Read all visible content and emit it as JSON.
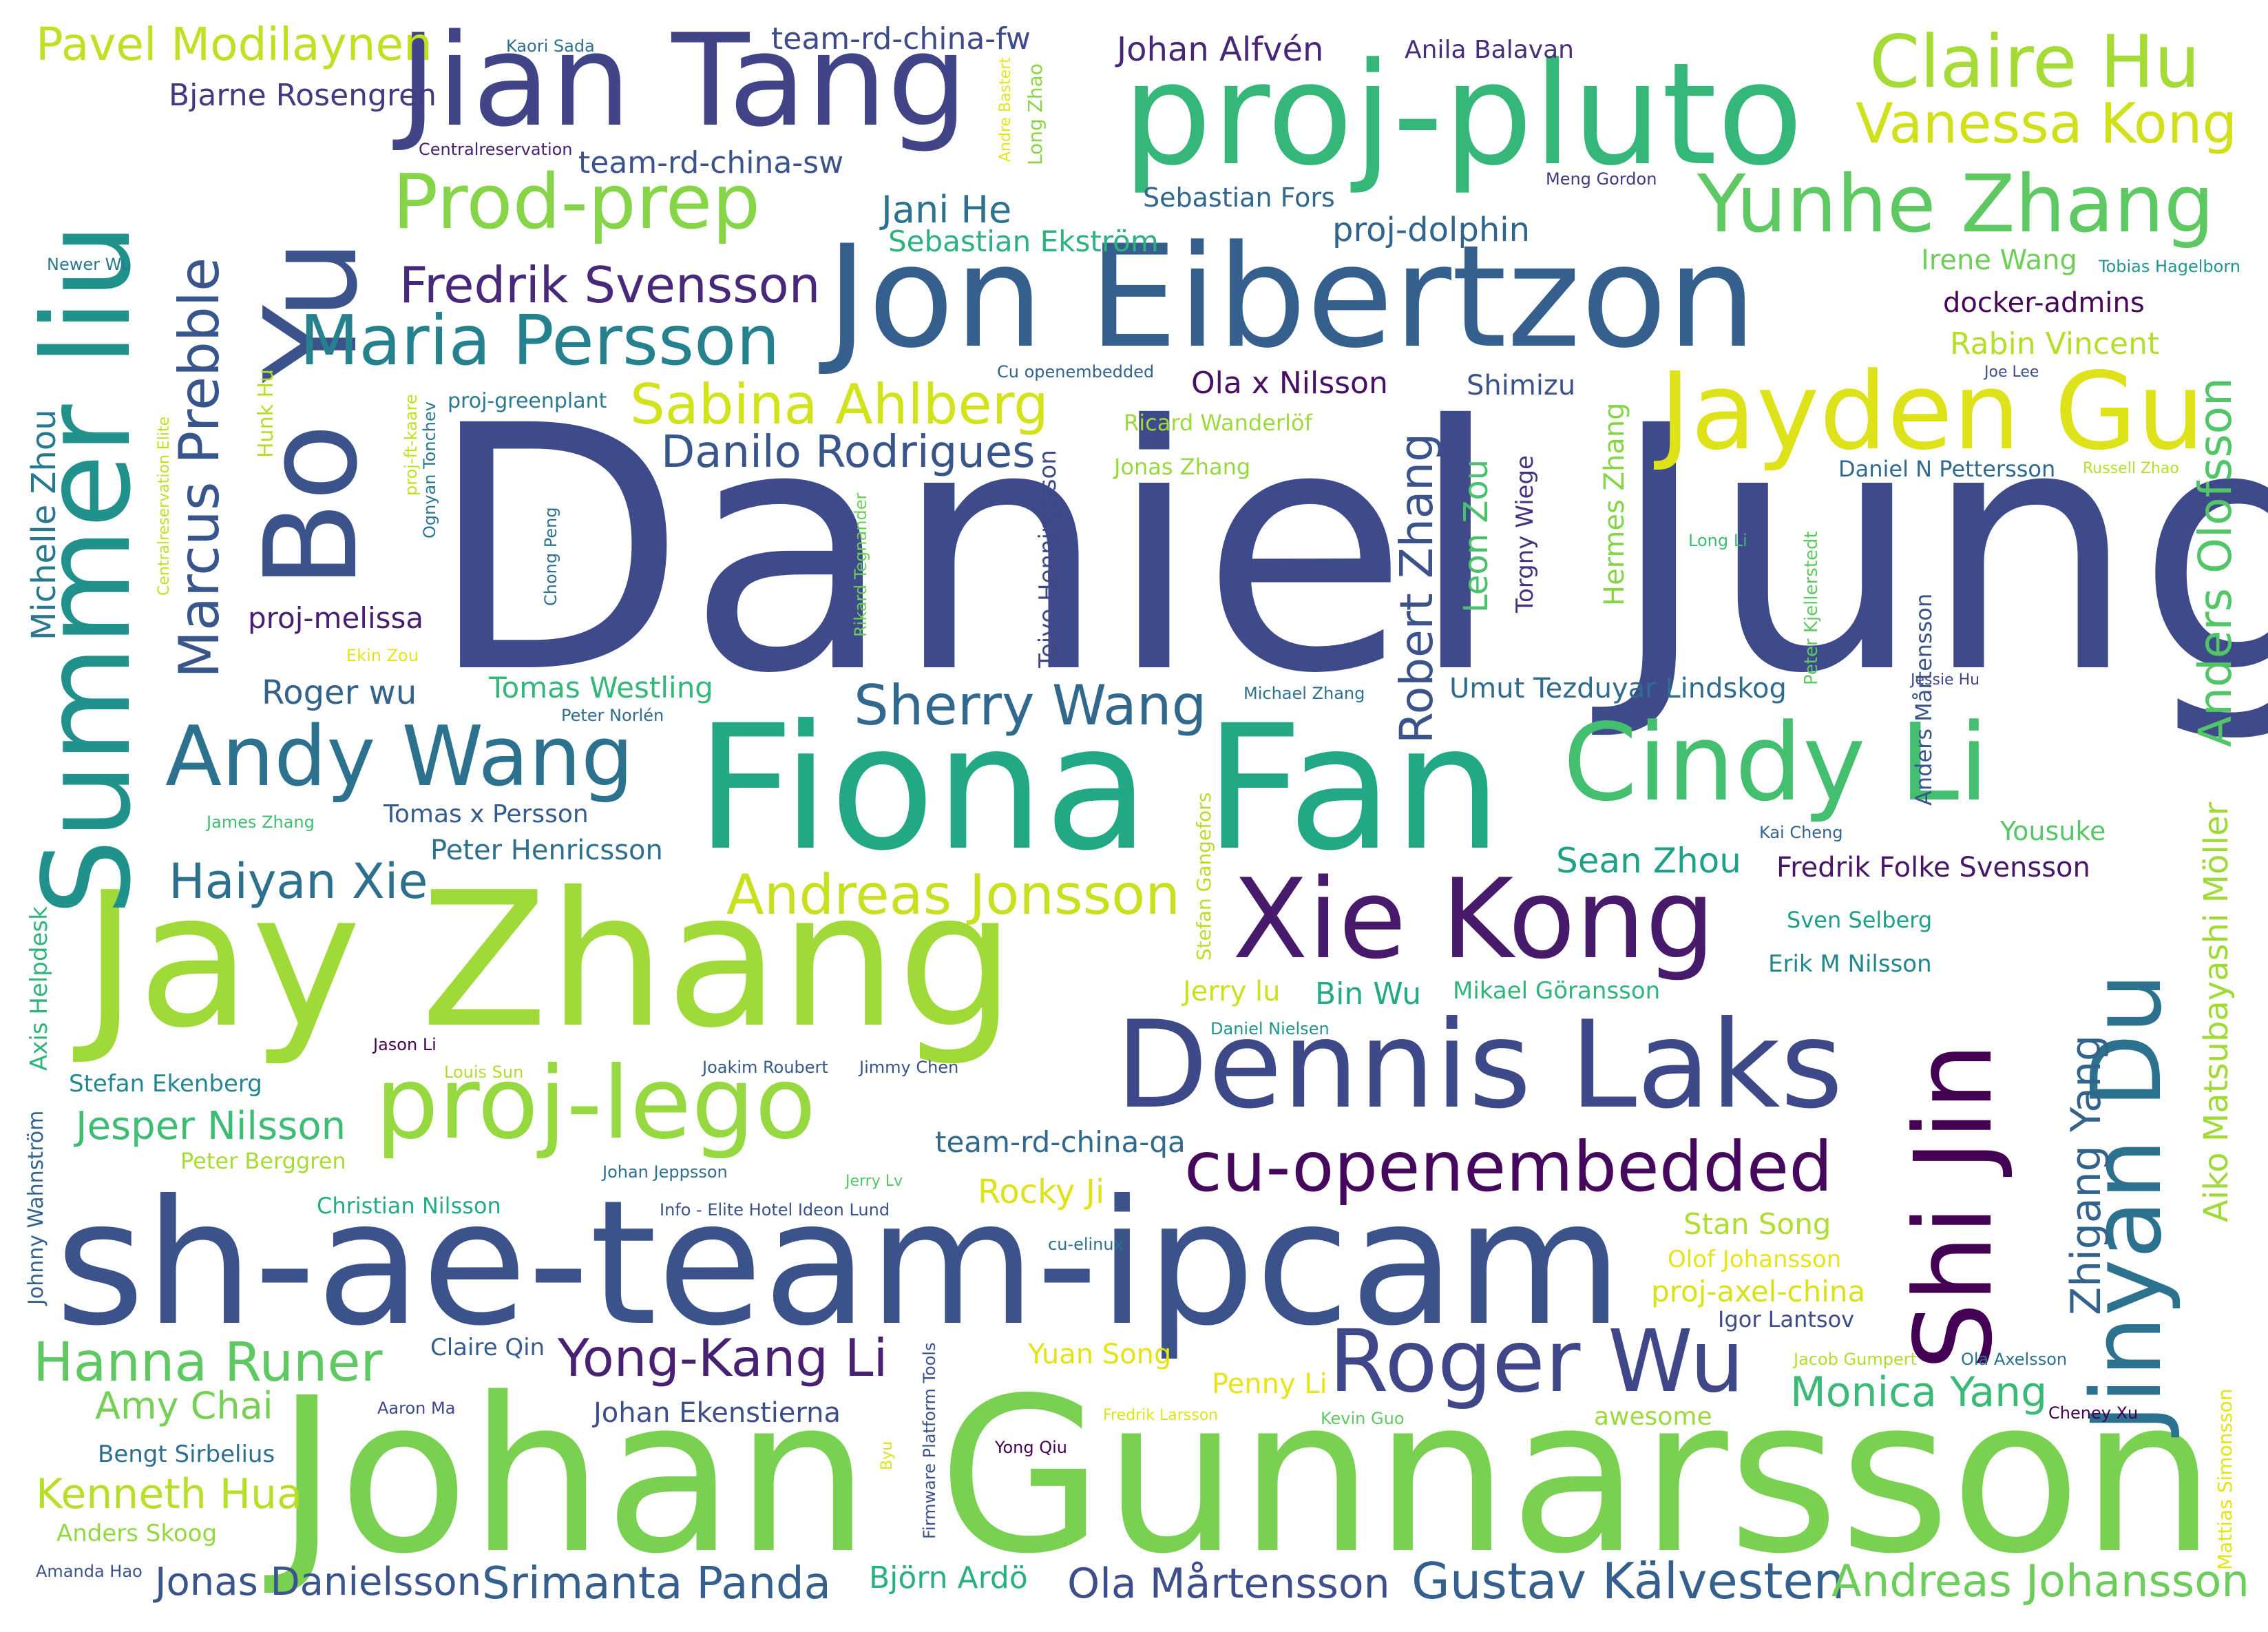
{
  "words": [
    {
      "text": "Daniel Jung",
      "color": "#3e4a89"
    },
    {
      "text": "Johan Gunnarsson",
      "color": "#7ad151"
    },
    {
      "text": "sh-ae-team-ipcam",
      "color": "#3b528b"
    },
    {
      "text": "Jay Zhang",
      "color": "#a0da39"
    },
    {
      "text": "Fiona Fan",
      "color": "#22a884"
    },
    {
      "text": "Jon Eibertzon",
      "color": "#355f8d"
    },
    {
      "text": "proj-pluto",
      "color": "#35b779"
    },
    {
      "text": "Jian Tang",
      "color": "#414487"
    },
    {
      "text": "Dennis Laks",
      "color": "#3e4989"
    },
    {
      "text": "Xie Kong",
      "color": "#481a6c"
    },
    {
      "text": "Shi Jin",
      "color": "#440154"
    },
    {
      "text": "Jinyan Du",
      "color": "#2c728e"
    },
    {
      "text": "Summer liu",
      "color": "#21918c"
    },
    {
      "text": "Bo Yu",
      "color": "#3b528b"
    },
    {
      "text": "Cindy Li",
      "color": "#44bf70"
    },
    {
      "text": "Jayden Gu",
      "color": "#dde318"
    },
    {
      "text": "Roger Wu",
      "color": "#3f4788"
    },
    {
      "text": "cu-openembedded",
      "color": "#46085c"
    },
    {
      "text": "proj-lego",
      "color": "#95d840"
    },
    {
      "text": "Andy Wang",
      "color": "#2c728e"
    },
    {
      "text": "Claire Hu",
      "color": "#a5db36"
    },
    {
      "text": "Yunhe Zhang",
      "color": "#5ec962"
    },
    {
      "text": "Maria Persson",
      "color": "#26818e"
    },
    {
      "text": "Prod-prep",
      "color": "#86d549"
    },
    {
      "text": "Marcus Prebble",
      "color": "#39568c"
    },
    {
      "text": "Vanessa Kong",
      "color": "#d0e11c"
    },
    {
      "text": "Pavel Modilaynen",
      "color": "#c2df23"
    },
    {
      "text": "Sabina Ahlberg",
      "color": "#d2e21b"
    },
    {
      "text": "Fredrik Svensson",
      "color": "#482878"
    },
    {
      "text": "Danilo Rodrigues",
      "color": "#39568c"
    },
    {
      "text": "Hanna Runer",
      "color": "#5ec962"
    },
    {
      "text": "Andreas Jonsson",
      "color": "#c8e020"
    },
    {
      "text": "Sherry Wang",
      "color": "#31688e"
    },
    {
      "text": "Haiyan Xie",
      "color": "#2d708e"
    },
    {
      "text": "Yong-Kang Li",
      "color": "#482173"
    },
    {
      "text": "Gustav Kälvesten",
      "color": "#355f8d"
    },
    {
      "text": "Andreas Johansson",
      "color": "#6ccd5a"
    },
    {
      "text": "Monica Yang",
      "color": "#3aba76"
    },
    {
      "text": "Srimanta Panda",
      "color": "#355f8d"
    },
    {
      "text": "Ola Mårtensson",
      "color": "#3d4e8a"
    },
    {
      "text": "Jonas Danielsson",
      "color": "#3a548c"
    },
    {
      "text": "Kenneth Hua",
      "color": "#b8de29"
    },
    {
      "text": "Jesper Nilsson",
      "color": "#3fbc73"
    },
    {
      "text": "Amy Chai",
      "color": "#75d054"
    },
    {
      "text": "Robert Zhang",
      "color": "#3b528b"
    },
    {
      "text": "Anders Olofsson",
      "color": "#52c569"
    },
    {
      "text": "Aiko Matsubayashi Möller",
      "color": "#a0da39"
    },
    {
      "text": "Zhigang Yang",
      "color": "#33638d"
    },
    {
      "text": "Michelle Zhou",
      "color": "#2a788e"
    },
    {
      "text": "team-rd-china-fw",
      "color": "#3e4a89"
    },
    {
      "text": "team-rd-china-sw",
      "color": "#3b528b"
    },
    {
      "text": "team-rd-china-qa",
      "color": "#30698e"
    },
    {
      "text": "Johan Alfvén",
      "color": "#482677"
    },
    {
      "text": "Anila Balavan",
      "color": "#472d7b"
    },
    {
      "text": "Bjarne Rosengren",
      "color": "#443983"
    },
    {
      "text": "Jani He",
      "color": "#2c728e"
    },
    {
      "text": "Sebastian Fors",
      "color": "#31688e"
    },
    {
      "text": "Sebastian Ekström",
      "color": "#2db27d"
    },
    {
      "text": "proj-dolphin",
      "color": "#32658e"
    },
    {
      "text": "Irene Wang",
      "color": "#6ece58"
    },
    {
      "text": "docker-admins",
      "color": "#46075a"
    },
    {
      "text": "Rabin Vincent",
      "color": "#b5de2b"
    },
    {
      "text": "Ola x Nilsson",
      "color": "#471063"
    },
    {
      "text": "Shimizu",
      "color": "#3b528b"
    },
    {
      "text": "Daniel N Pettersson",
      "color": "#2f6b8e"
    },
    {
      "text": "proj-melissa",
      "color": "#481f70"
    },
    {
      "text": "Roger wu",
      "color": "#33638d"
    },
    {
      "text": "Tomas Westling",
      "color": "#35b779"
    },
    {
      "text": "Umut Tezduyar Lindskog",
      "color": "#2f6c8e"
    },
    {
      "text": "Sean Zhou",
      "color": "#1fa088"
    },
    {
      "text": "Fredrik Folke Svensson",
      "color": "#481769"
    },
    {
      "text": "Yousuke",
      "color": "#56c667"
    },
    {
      "text": "Sven Selberg",
      "color": "#1f9e89"
    },
    {
      "text": "Erik M Nilsson",
      "color": "#23888e"
    },
    {
      "text": "Bin Wu",
      "color": "#23a983"
    },
    {
      "text": "Mikael Göransson",
      "color": "#30b57a"
    },
    {
      "text": "Jerry lu",
      "color": "#cae11f"
    },
    {
      "text": "Rocky Ji",
      "color": "#dde318"
    },
    {
      "text": "Stan Song",
      "color": "#b0dd2f"
    },
    {
      "text": "Olof Johansson",
      "color": "#e5e419"
    },
    {
      "text": "proj-axel-china",
      "color": "#d8e219"
    },
    {
      "text": "Igor Lantsov",
      "color": "#3e4a89"
    },
    {
      "text": "Yuan Song",
      "color": "#e2e418"
    },
    {
      "text": "Penny Li",
      "color": "#e7e419"
    },
    {
      "text": "awesome",
      "color": "#9bd93c"
    },
    {
      "text": "Johan Ekenstierna",
      "color": "#3d4e8a"
    },
    {
      "text": "Claire Qin",
      "color": "#365d8d"
    },
    {
      "text": "Tomas x Persson",
      "color": "#365c8d"
    },
    {
      "text": "Peter Henricsson",
      "color": "#2d718e"
    },
    {
      "text": "Stefan Ekenberg",
      "color": "#24868e"
    },
    {
      "text": "Peter Berggren",
      "color": "#a8db34"
    },
    {
      "text": "Christian Nilsson",
      "color": "#25ab82"
    },
    {
      "text": "Bengt Sirbelius",
      "color": "#2e6f8e"
    },
    {
      "text": "Anders Skoog",
      "color": "#93d741"
    },
    {
      "text": "Amanda Hao",
      "color": "#3a538b"
    },
    {
      "text": "Björn Ardö",
      "color": "#2ab07f"
    },
    {
      "text": "Leon Zou",
      "color": "#4ac16d"
    },
    {
      "text": "Hermes Zhang",
      "color": "#86d549"
    },
    {
      "text": "Torgny Wiege",
      "color": "#45337d"
    },
    {
      "text": "Toivo Henningsson",
      "color": "#3f4889"
    },
    {
      "text": "Anders Mårtensson",
      "color": "#39558c"
    },
    {
      "text": "Mattias Simonsson",
      "color": "#e2e418"
    },
    {
      "text": "Axis Helpdesk",
      "color": "#2fb47c"
    },
    {
      "text": "Johnny Wahnström",
      "color": "#33638d"
    },
    {
      "text": "Hunk Hu",
      "color": "#b5de2b"
    },
    {
      "text": "Firmware Platform Tools",
      "color": "#3b528b"
    },
    {
      "text": "Stefan Gangefors",
      "color": "#bade28"
    },
    {
      "text": "Peter Kjellerstedt",
      "color": "#5ec962"
    },
    {
      "text": "Rikard Tegnander",
      "color": "#6ccd5a"
    },
    {
      "text": "Ognyan Tonchev",
      "color": "#2a788e"
    },
    {
      "text": "Centralreservation Elite",
      "color": "#c0df25"
    },
    {
      "text": "proj-ft-kaare",
      "color": "#c2df23"
    },
    {
      "text": "Chong Peng",
      "color": "#2c728e"
    },
    {
      "text": "Long Zhao",
      "color": "#8bd646"
    },
    {
      "text": "Andre Bastert",
      "color": "#e5e419"
    },
    {
      "text": "Byu",
      "color": "#dde318"
    },
    {
      "text": "Kaori Sada",
      "color": "#2c728e"
    },
    {
      "text": "Centralreservation",
      "color": "#482071"
    },
    {
      "text": "Newer Wu",
      "color": "#2a788e"
    },
    {
      "text": "Meng Gordon",
      "color": "#453781"
    },
    {
      "text": "Tobias Hagelborn",
      "color": "#1f958b"
    },
    {
      "text": "Cu openembedded",
      "color": "#33638d"
    },
    {
      "text": "proj-greenplant",
      "color": "#297a8e"
    },
    {
      "text": "Ricard Wanderlöf",
      "color": "#9dd93b"
    },
    {
      "text": "Jonas Zhang",
      "color": "#98d83e"
    },
    {
      "text": "Joe Lee",
      "color": "#3d4d8a"
    },
    {
      "text": "Russell Zhao",
      "color": "#b5de2b"
    },
    {
      "text": "Long Li",
      "color": "#3dbc74"
    },
    {
      "text": "Ekin Zou",
      "color": "#e5e419"
    },
    {
      "text": "Peter Norlén",
      "color": "#2f6c8e"
    },
    {
      "text": "Michael Zhang",
      "color": "#2c728e"
    },
    {
      "text": "Jessie Hu",
      "color": "#3f4788"
    },
    {
      "text": "James Zhang",
      "color": "#40bd72"
    },
    {
      "text": "Kai Cheng",
      "color": "#32648e"
    },
    {
      "text": "Jason Li",
      "color": "#440154"
    },
    {
      "text": "Louis Sun",
      "color": "#b0dd2f"
    },
    {
      "text": "Joakim Roubert",
      "color": "#375a8c"
    },
    {
      "text": "Jimmy Chen",
      "color": "#3b528b"
    },
    {
      "text": "Daniel Nielsen",
      "color": "#1f968b"
    },
    {
      "text": "Johan Jeppsson",
      "color": "#2e6e8e"
    },
    {
      "text": "Jerry Lv",
      "color": "#52c569"
    },
    {
      "text": "Info - Elite Hotel Ideon Lund",
      "color": "#3b528b"
    },
    {
      "text": "cu-elinux",
      "color": "#2d708e"
    },
    {
      "text": "Jacob Gumpert",
      "color": "#b0dd2f"
    },
    {
      "text": "Ola Axelsson",
      "color": "#2c728e"
    },
    {
      "text": "Cheney Xu",
      "color": "#440154"
    },
    {
      "text": "Aaron Ma",
      "color": "#3e4a89"
    },
    {
      "text": "Fredrik Larsson",
      "color": "#dde318"
    },
    {
      "text": "Kevin Guo",
      "color": "#5ec962"
    },
    {
      "text": "Yong Qiu",
      "color": "#440154"
    }
  ]
}
